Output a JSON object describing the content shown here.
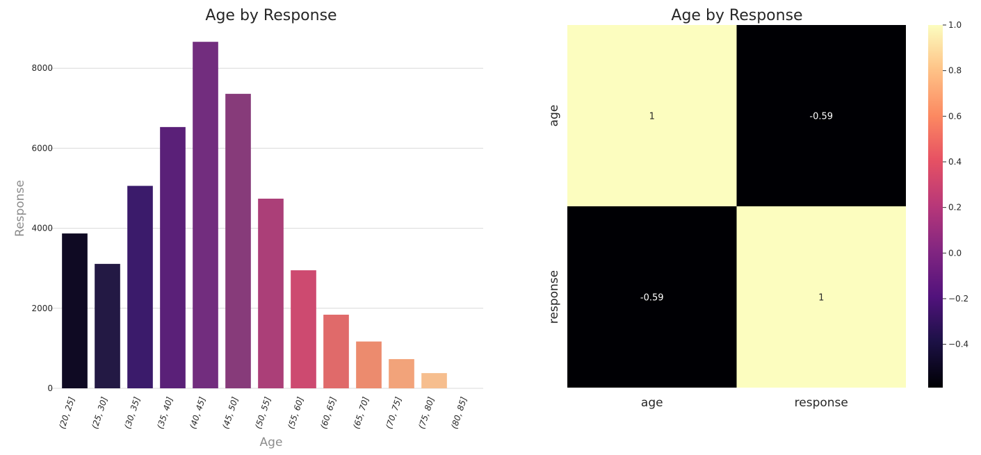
{
  "chart_data": [
    {
      "type": "bar",
      "title": "Age by Response",
      "xlabel": "Age",
      "ylabel": "Response",
      "categories": [
        "(20, 25]",
        "(25, 30]",
        "(30, 35]",
        "(35, 40]",
        "(40, 45]",
        "(45, 50]",
        "(50, 55]",
        "(55, 60]",
        "(60, 65]",
        "(65, 70]",
        "(70, 75]",
        "(75, 80]",
        "(80, 85]"
      ],
      "values": [
        3870,
        3110,
        5060,
        6530,
        8660,
        7360,
        4740,
        2950,
        1840,
        1170,
        730,
        380,
        0
      ],
      "colors": [
        "#0f0a23",
        "#231944",
        "#3b1b6b",
        "#5a2078",
        "#722d7e",
        "#873b7a",
        "#ab3f78",
        "#cd4a70",
        "#e06a6a",
        "#ec8b6e",
        "#f2a37a",
        "#f6be8e",
        "#fcd8a5"
      ],
      "yticks": [
        0,
        2000,
        4000,
        6000,
        8000
      ],
      "ytick_labels": [
        "0",
        "2000",
        "4000",
        "6000",
        "8000"
      ],
      "ylim": [
        0,
        9080
      ],
      "grid": true,
      "legend": "none"
    },
    {
      "type": "heatmap",
      "title": "Age by Response",
      "rows": [
        "age",
        "response"
      ],
      "columns": [
        "age",
        "response"
      ],
      "values": [
        [
          1,
          -0.59
        ],
        [
          -0.59,
          1
        ]
      ],
      "annotations": [
        [
          "1",
          "-0.59"
        ],
        [
          "-0.59",
          "1"
        ]
      ],
      "colorscale": "magma",
      "vmin": -0.59,
      "vmax": 1.0,
      "colorbar_ticks": [
        1.0,
        0.8,
        0.6,
        0.4,
        0.2,
        0.0,
        -0.2,
        -0.4
      ],
      "colorbar_tick_labels": [
        "1.0",
        "0.8",
        "0.6",
        "0.4",
        "0.2",
        "0.0",
        "−0.2",
        "−0.4"
      ],
      "cell_colors": [
        [
          "#fcfdbf",
          "#000004"
        ],
        [
          "#000004",
          "#fcfdbf"
        ]
      ],
      "annotation_colors": [
        [
          "#262626",
          "#ffffff"
        ],
        [
          "#ffffff",
          "#262626"
        ]
      ]
    }
  ]
}
